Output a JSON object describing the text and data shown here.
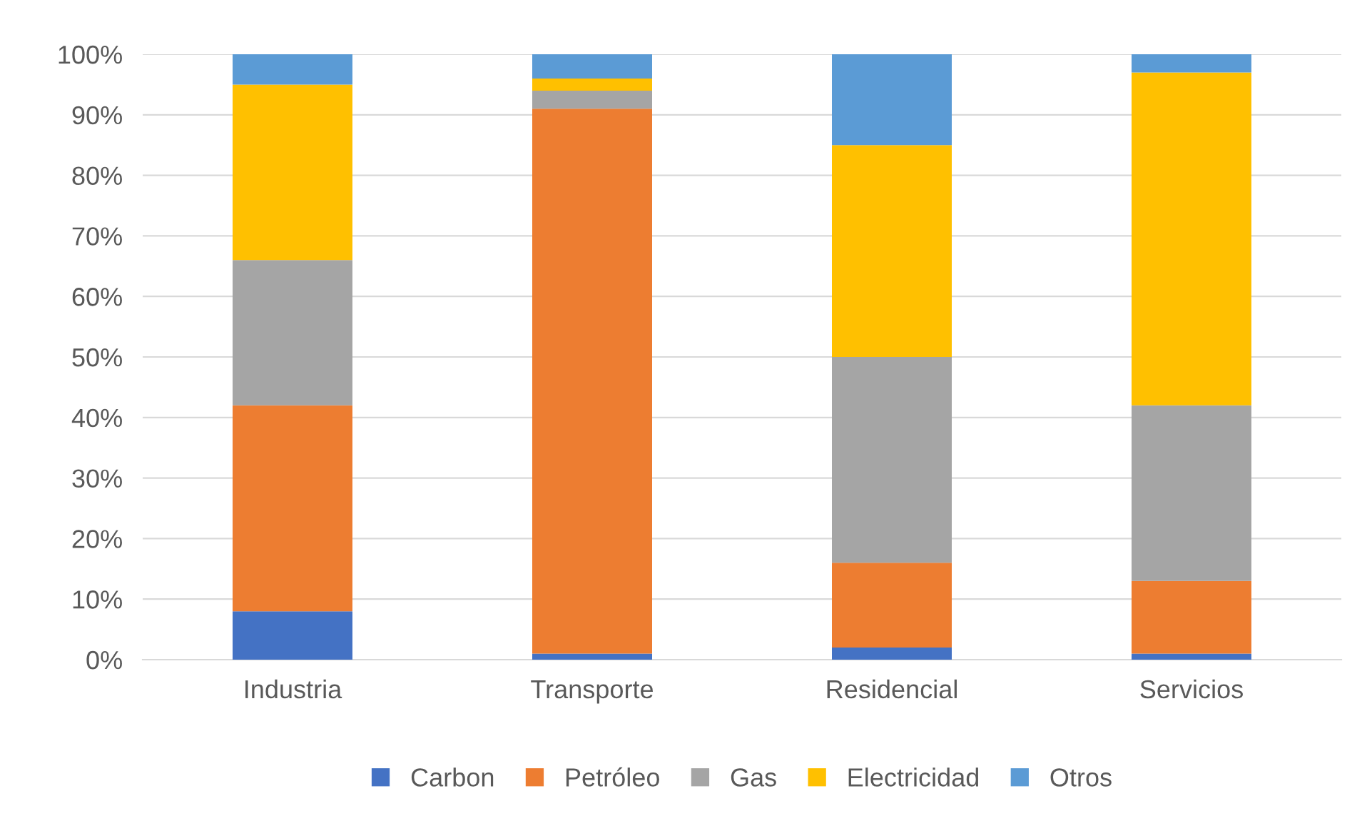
{
  "chart_data": {
    "type": "bar",
    "stacked": true,
    "categories": [
      "Industria",
      "Transporte",
      "Residencial",
      "Servicios"
    ],
    "series": [
      {
        "name": "Carbon",
        "color": "#4472c4",
        "values": [
          8,
          1,
          2,
          1
        ]
      },
      {
        "name": "Petróleo",
        "color": "#ed7d31",
        "values": [
          34,
          90,
          14,
          12
        ]
      },
      {
        "name": "Gas",
        "color": "#a5a5a5",
        "values": [
          24,
          3,
          34,
          29
        ]
      },
      {
        "name": "Electricidad",
        "color": "#ffc000",
        "values": [
          29,
          2,
          35,
          55
        ]
      },
      {
        "name": "Otros",
        "color": "#5b9bd5",
        "values": [
          5,
          4,
          15,
          3
        ]
      }
    ],
    "ylim": [
      0,
      100
    ],
    "yticks": [
      {
        "value": 0,
        "label": "0%"
      },
      {
        "value": 10,
        "label": "10%"
      },
      {
        "value": 20,
        "label": "20%"
      },
      {
        "value": 30,
        "label": "30%"
      },
      {
        "value": 40,
        "label": "40%"
      },
      {
        "value": 50,
        "label": "50%"
      },
      {
        "value": 60,
        "label": "60%"
      },
      {
        "value": 70,
        "label": "70%"
      },
      {
        "value": 80,
        "label": "80%"
      },
      {
        "value": 90,
        "label": "90%"
      },
      {
        "value": 100,
        "label": "100%"
      }
    ],
    "grid": "y",
    "legend": "bottom"
  }
}
